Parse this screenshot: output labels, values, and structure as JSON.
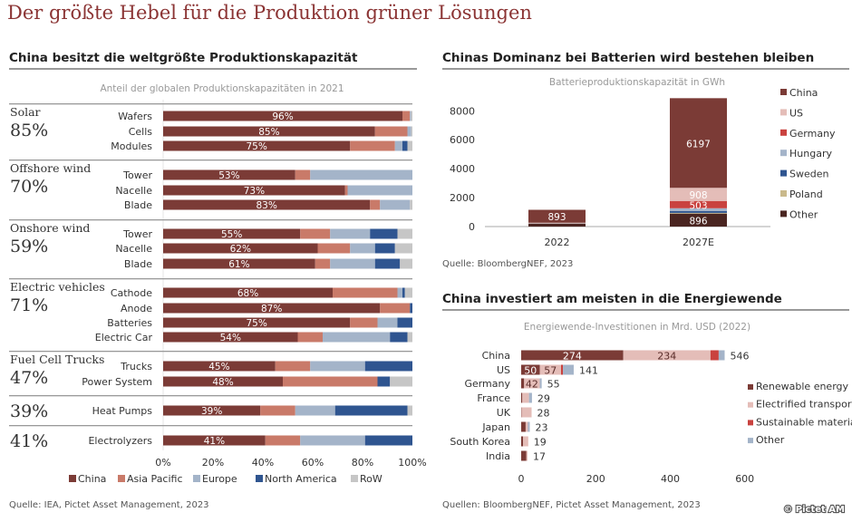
{
  "title": "Der größte Hebel für die Produktion grüner Lösungen",
  "copyright": "© Pictet AM",
  "chart_data": [
    {
      "type": "bar",
      "orientation": "horizontal-stacked-percent",
      "heading": "China besitzt die weltgrößte Produktionskapazität",
      "title": "Anteil der globalen Produktionskapazitäten in 2021",
      "source": "Quelle: IEA, Pictet Asset Management, 2023",
      "xlim": [
        0,
        100
      ],
      "xticks": [
        "0%",
        "20%",
        "40%",
        "60%",
        "80%",
        "100%"
      ],
      "legend_position": "bottom",
      "series_names": [
        "China",
        "Asia Pacific",
        "Europe",
        "North America",
        "RoW"
      ],
      "colors": [
        "#7b3b36",
        "#c97a69",
        "#a4b4c9",
        "#2f5590",
        "#c6c6c6"
      ],
      "groups": [
        {
          "name": "Solar",
          "share": "85%",
          "rows": [
            {
              "label": "Wafers",
              "china_label": "96%",
              "values": [
                96,
                3,
                0.5,
                0,
                0.5
              ]
            },
            {
              "label": "Cells",
              "china_label": "85%",
              "values": [
                85,
                13,
                1.5,
                0,
                0.5
              ]
            },
            {
              "label": "Modules",
              "china_label": "75%",
              "values": [
                75,
                18,
                3,
                2,
                2
              ]
            }
          ]
        },
        {
          "name": "Offshore wind",
          "share": "70%",
          "rows": [
            {
              "label": "Tower",
              "china_label": "53%",
              "values": [
                53,
                6,
                41,
                0,
                0
              ]
            },
            {
              "label": "Nacelle",
              "china_label": "73%",
              "values": [
                73,
                1,
                26,
                0,
                0
              ]
            },
            {
              "label": "Blade",
              "china_label": "83%",
              "values": [
                83,
                4,
                12,
                0,
                1
              ]
            }
          ]
        },
        {
          "name": "Onshore wind",
          "share": "59%",
          "rows": [
            {
              "label": "Tower",
              "china_label": "55%",
              "values": [
                55,
                12,
                16,
                11,
                6
              ]
            },
            {
              "label": "Nacelle",
              "china_label": "62%",
              "values": [
                62,
                13,
                10,
                8,
                7
              ]
            },
            {
              "label": "Blade",
              "china_label": "61%",
              "values": [
                61,
                6,
                18,
                10,
                5
              ]
            }
          ]
        },
        {
          "name": "Electric vehicles",
          "share": "71%",
          "rows": [
            {
              "label": "Cathode",
              "china_label": "68%",
              "values": [
                68,
                26,
                2,
                1,
                3
              ]
            },
            {
              "label": "Anode",
              "china_label": "87%",
              "values": [
                87,
                12,
                0,
                1,
                0
              ]
            },
            {
              "label": "Batteries",
              "china_label": "75%",
              "values": [
                75,
                11,
                8,
                6,
                0
              ]
            },
            {
              "label": "Electric Car",
              "china_label": "54%",
              "values": [
                54,
                10,
                27,
                7,
                2
              ]
            }
          ]
        },
        {
          "name": "Fuel Cell Trucks",
          "share": "47%",
          "rows": [
            {
              "label": "Trucks",
              "china_label": "45%",
              "values": [
                45,
                14,
                22,
                19,
                0
              ]
            },
            {
              "label": "Power System",
              "china_label": "48%",
              "values": [
                48,
                38,
                0,
                5,
                9
              ]
            }
          ]
        },
        {
          "name": "",
          "share": "39%",
          "rows": [
            {
              "label": "Heat Pumps",
              "china_label": "39%",
              "values": [
                39,
                14,
                16,
                29,
                2
              ]
            }
          ]
        },
        {
          "name": "",
          "share": "41%",
          "rows": [
            {
              "label": "Electrolyzers",
              "china_label": "41%",
              "values": [
                41,
                14,
                26,
                19,
                0
              ]
            }
          ]
        }
      ]
    },
    {
      "type": "bar",
      "orientation": "vertical-stacked",
      "heading": "Chinas Dominanz bei Batterien wird bestehen bleiben",
      "title": "Batterieproduktionskapazität in GWh",
      "source": "Quelle: BloombergNEF, 2023",
      "ylim": [
        0,
        9000
      ],
      "yticks": [
        "0",
        "2000",
        "4000",
        "6000",
        "8000"
      ],
      "grid": false,
      "legend_position": "right",
      "categories": [
        "2022",
        "2027E"
      ],
      "series": [
        {
          "name": "Other",
          "color": "#4a2521",
          "values": [
            200,
            896
          ],
          "labels": [
            "",
            "896"
          ]
        },
        {
          "name": "Poland",
          "color": "#c9b98b",
          "values": [
            10,
            50
          ],
          "labels": [
            "",
            ""
          ]
        },
        {
          "name": "Sweden",
          "color": "#2f5590",
          "values": [
            5,
            120
          ],
          "labels": [
            "",
            ""
          ]
        },
        {
          "name": "Hungary",
          "color": "#a4b4c9",
          "values": [
            10,
            200
          ],
          "labels": [
            "",
            ""
          ]
        },
        {
          "name": "Germany",
          "color": "#c9423f",
          "values": [
            10,
            503
          ],
          "labels": [
            "",
            "503"
          ]
        },
        {
          "name": "US",
          "color": "#e4bdb8",
          "values": [
            30,
            908
          ],
          "labels": [
            "",
            "908"
          ]
        },
        {
          "name": "China",
          "color": "#7b3b36",
          "values": [
            893,
            6197
          ],
          "labels": [
            "893",
            "6197"
          ]
        }
      ],
      "legend_order": [
        "China",
        "US",
        "Germany",
        "Hungary",
        "Sweden",
        "Poland",
        "Other"
      ]
    },
    {
      "type": "bar",
      "orientation": "horizontal-stacked",
      "heading": "China investiert am meisten in die Energiewende",
      "title": "Energiewende-Investitionen in Mrd. USD  (2022)",
      "source": "Quellen: BloombergNEF, Pictet Asset Management, 2023",
      "xlim": [
        0,
        600
      ],
      "xticks": [
        "0",
        "200",
        "400",
        "600"
      ],
      "legend_position": "right",
      "categories": [
        "China",
        "US",
        "Germany",
        "France",
        "UK",
        "Japan",
        "South Korea",
        "India"
      ],
      "totals": [
        "546",
        "141",
        "55",
        "29",
        "28",
        "23",
        "19",
        "17"
      ],
      "series": [
        {
          "name": "Renewable energy",
          "color": "#7b3b36",
          "values": [
            274,
            50,
            8,
            3,
            1,
            12,
            5,
            14
          ],
          "labels": [
            "274",
            "50",
            "",
            "",
            "",
            "",
            "",
            ""
          ]
        },
        {
          "name": "Electrified transport",
          "color": "#e4bdb8",
          "values": [
            234,
            57,
            42,
            18,
            27,
            6,
            14,
            3
          ],
          "labels": [
            "234",
            "57",
            "42",
            "",
            "",
            "",
            "",
            ""
          ]
        },
        {
          "name": "Sustainable materials",
          "color": "#c9423f",
          "values": [
            22,
            5,
            0,
            0,
            0,
            0,
            0,
            0
          ],
          "labels": [
            "",
            "",
            "",
            "",
            "",
            "",
            "",
            ""
          ]
        },
        {
          "name": "Other",
          "color": "#a4b4c9",
          "values": [
            16,
            29,
            5,
            8,
            0,
            5,
            0,
            0
          ],
          "labels": [
            "",
            "",
            "",
            "",
            "",
            "",
            "",
            ""
          ]
        }
      ]
    }
  ]
}
